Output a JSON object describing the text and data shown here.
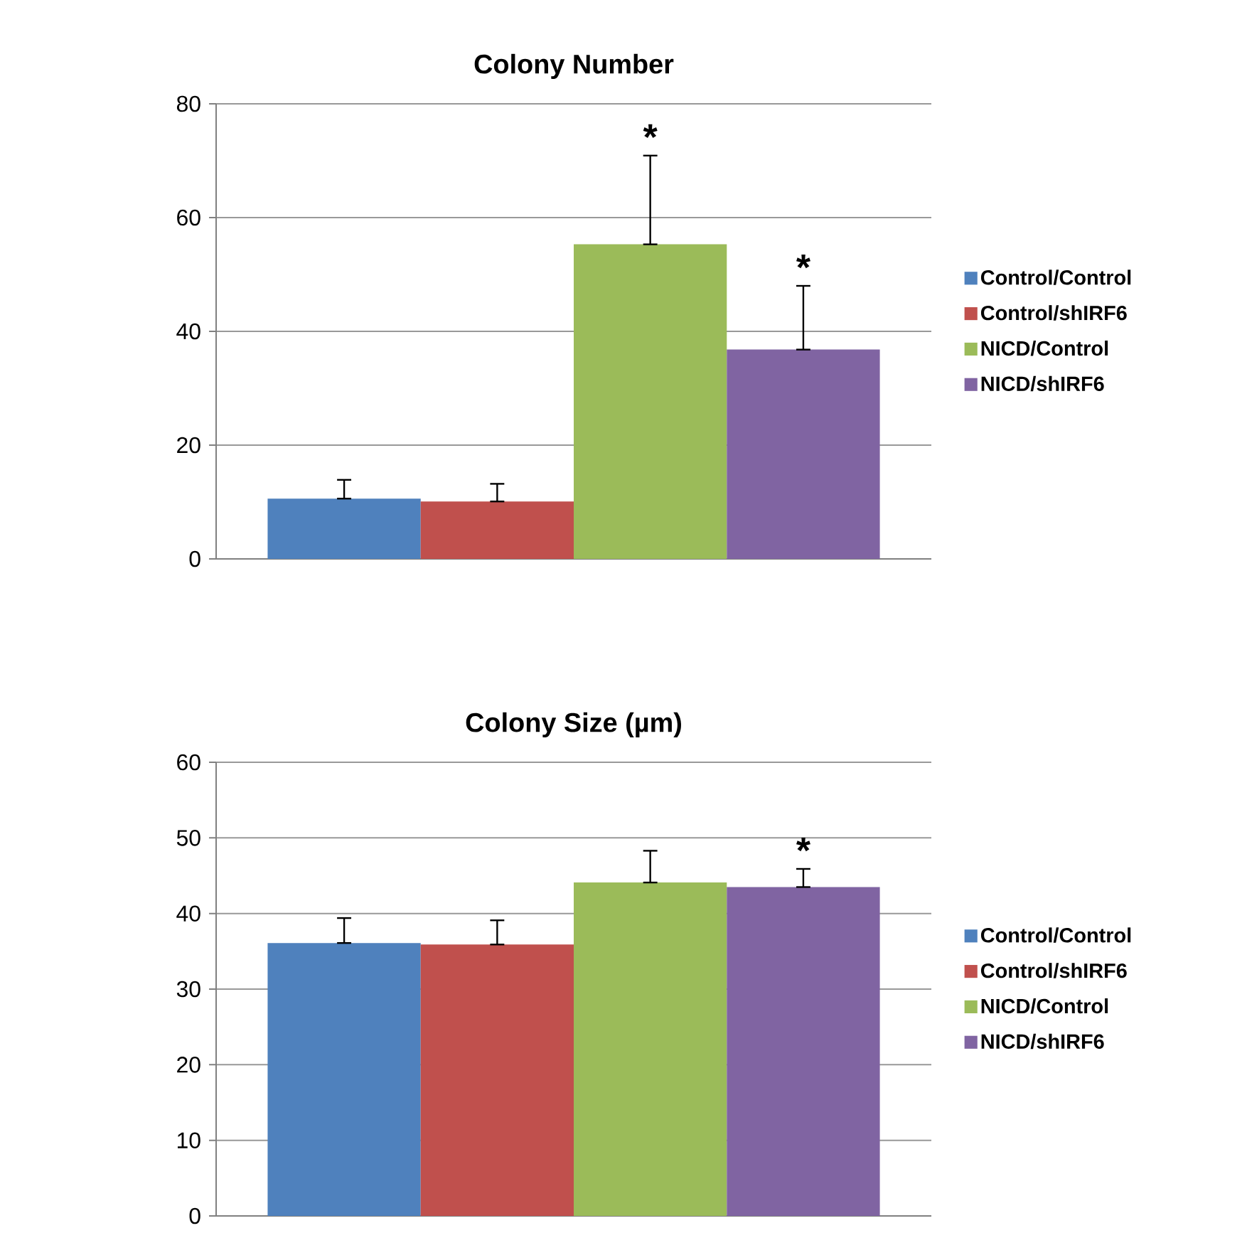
{
  "chart_data": [
    {
      "type": "bar",
      "title": "Colony Number",
      "categories": [
        null
      ],
      "series": [
        {
          "name": "Control/Control",
          "color": "#4f81bd",
          "values": [
            10.6
          ],
          "errors": [
            [
              10.6,
              13.9
            ]
          ]
        },
        {
          "name": "Control/shIRF6",
          "color": "#c0504d",
          "values": [
            10.1
          ],
          "errors": [
            [
              10.1,
              13.2
            ]
          ]
        },
        {
          "name": "NICD/Control",
          "color": "#9bbb59",
          "values": [
            55.3
          ],
          "errors": [
            [
              55.3,
              70.9
            ]
          ],
          "value_labels": [
            "*"
          ]
        },
        {
          "name": "NICD/shIRF6",
          "color": "#8064a2",
          "values": [
            36.8
          ],
          "errors": [
            [
              36.8,
              48.0
            ]
          ],
          "value_labels": [
            "*"
          ]
        }
      ],
      "ylim": [
        0,
        80
      ],
      "yticks": [
        0,
        20,
        40,
        60,
        80
      ],
      "grid": "y",
      "legend": "right"
    },
    {
      "type": "bar",
      "title": "Colony Size (µm)",
      "categories": [
        null
      ],
      "series": [
        {
          "name": "Control/Control",
          "color": "#4f81bd",
          "values": [
            36.1
          ],
          "errors": [
            [
              36.1,
              39.4
            ]
          ]
        },
        {
          "name": "Control/shIRF6",
          "color": "#c0504d",
          "values": [
            35.9
          ],
          "errors": [
            [
              35.9,
              39.1
            ]
          ]
        },
        {
          "name": "NICD/Control",
          "color": "#9bbb59",
          "values": [
            44.1
          ],
          "errors": [
            [
              44.1,
              48.3
            ]
          ]
        },
        {
          "name": "NICD/shIRF6",
          "color": "#8064a2",
          "values": [
            43.5
          ],
          "errors": [
            [
              43.5,
              45.9
            ]
          ],
          "value_labels": [
            "*"
          ]
        }
      ],
      "ylim": [
        0,
        60
      ],
      "yticks": [
        0,
        10,
        20,
        30,
        40,
        50,
        60
      ],
      "grid": "y",
      "legend": "right"
    }
  ]
}
